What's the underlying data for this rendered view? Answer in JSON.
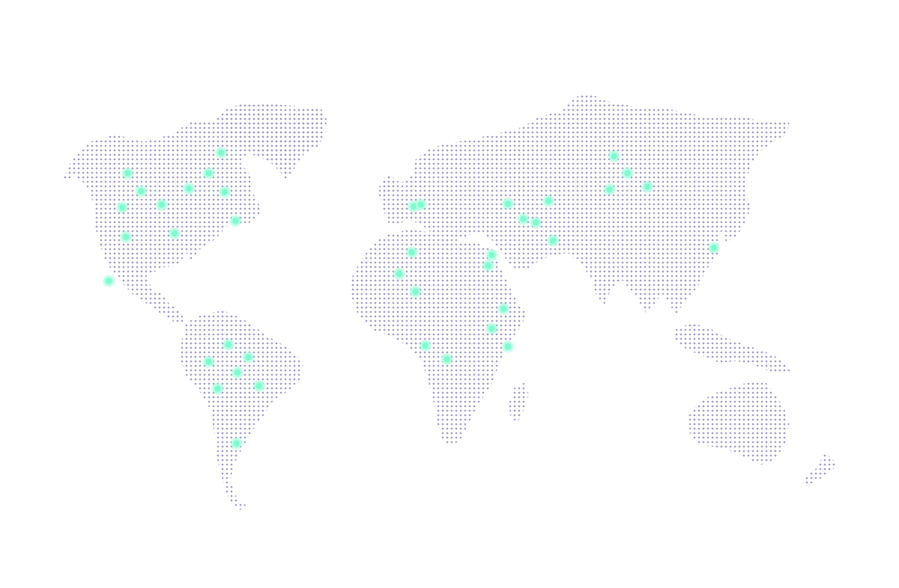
{
  "map": {
    "land_dot_color": "#8c88b8",
    "marker_color": "#7dfccf",
    "land_pattern": "dotted",
    "background": "#ffffff"
  },
  "markers": [
    {
      "region": "north-america"
    },
    {
      "region": "north-america"
    },
    {
      "region": "north-america"
    },
    {
      "region": "north-america"
    },
    {
      "region": "north-america"
    },
    {
      "region": "north-america"
    },
    {
      "region": "north-america"
    },
    {
      "region": "north-america"
    },
    {
      "region": "north-america"
    },
    {
      "region": "north-america"
    },
    {
      "region": "north-america"
    },
    {
      "region": "north-america"
    },
    {
      "region": "south-america"
    },
    {
      "region": "south-america"
    },
    {
      "region": "south-america"
    },
    {
      "region": "south-america"
    },
    {
      "region": "south-america"
    },
    {
      "region": "south-america"
    },
    {
      "region": "south-america"
    },
    {
      "region": "europe"
    },
    {
      "region": "europe"
    },
    {
      "region": "africa"
    },
    {
      "region": "africa"
    },
    {
      "region": "africa"
    },
    {
      "region": "africa"
    },
    {
      "region": "africa"
    },
    {
      "region": "africa"
    },
    {
      "region": "africa"
    },
    {
      "region": "africa"
    },
    {
      "region": "africa"
    },
    {
      "region": "asia"
    },
    {
      "region": "asia"
    },
    {
      "region": "asia"
    },
    {
      "region": "asia"
    },
    {
      "region": "asia"
    },
    {
      "region": "asia"
    },
    {
      "region": "asia"
    },
    {
      "region": "asia"
    },
    {
      "region": "asia"
    },
    {
      "region": "asia"
    }
  ]
}
